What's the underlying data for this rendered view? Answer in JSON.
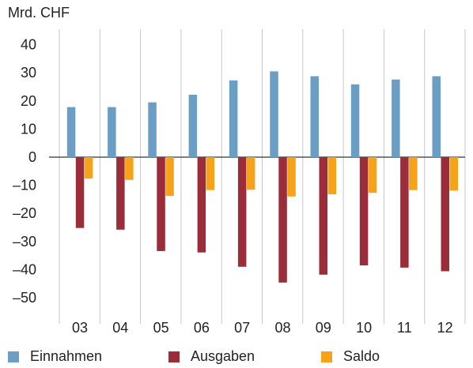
{
  "chart_data": {
    "type": "bar",
    "unit_label": "Mrd. CHF",
    "categories": [
      "03",
      "04",
      "05",
      "06",
      "07",
      "08",
      "09",
      "10",
      "11",
      "12"
    ],
    "series": [
      {
        "name": "Einnahmen",
        "color": "#6a9ec5",
        "values": [
          17.8,
          17.8,
          19.5,
          22.2,
          27.3,
          30.5,
          28.8,
          25.9,
          27.6,
          28.8
        ]
      },
      {
        "name": "Ausgaben",
        "color": "#9b2d3a",
        "values": [
          -25.2,
          -25.8,
          -33.4,
          -33.9,
          -39.0,
          -44.6,
          -41.8,
          -38.5,
          -39.3,
          -40.6
        ]
      },
      {
        "name": "Saldo",
        "color": "#f5a31a",
        "values": [
          -7.6,
          -8.1,
          -13.8,
          -11.7,
          -11.6,
          -14.0,
          -13.2,
          -12.7,
          -11.7,
          -11.9
        ]
      }
    ],
    "yticks": [
      "40",
      "30",
      "20",
      "10",
      "0",
      "–10",
      "–20",
      "–30",
      "–40",
      "–50"
    ],
    "ylim": [
      -58,
      45
    ],
    "grid": "vertical",
    "legend": "bottom"
  }
}
